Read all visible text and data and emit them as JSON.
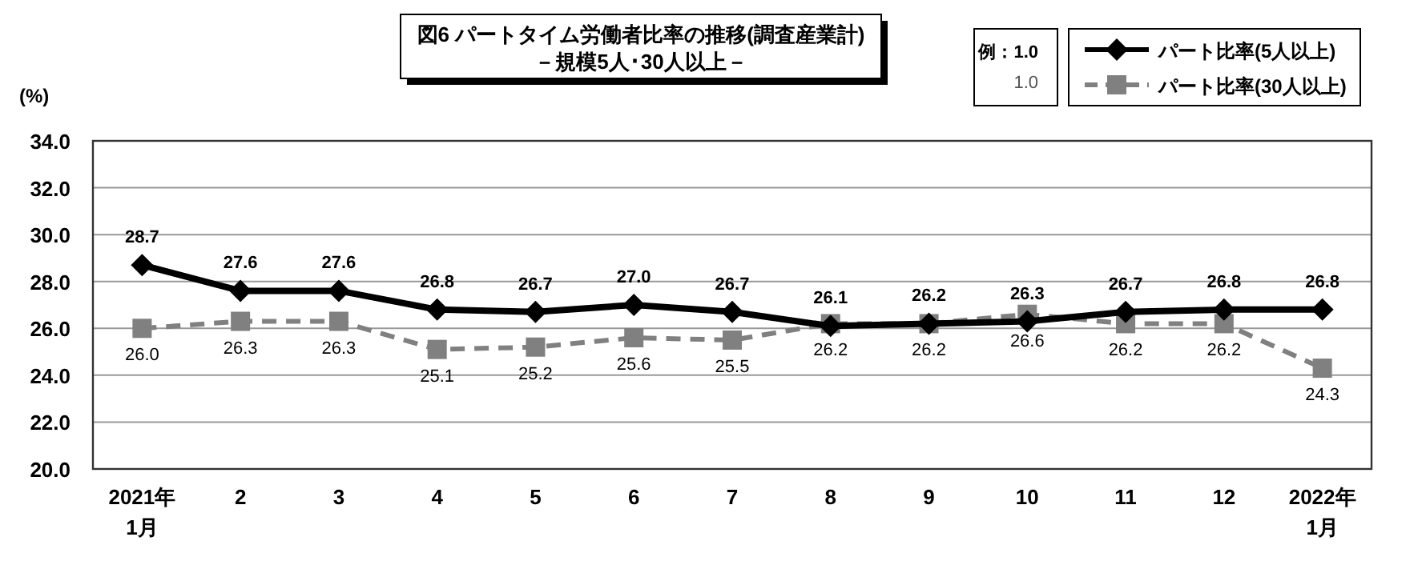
{
  "chart_data": {
    "type": "line",
    "title": "図6 パートタイム労働者比率の推移(調査産業計)",
    "subtitle": "－規模5人･30人以上－",
    "ylabel": "(%)",
    "categories": [
      "2021年\n1月",
      "2",
      "3",
      "4",
      "5",
      "6",
      "7",
      "8",
      "9",
      "10",
      "11",
      "12",
      "2022年\n1月"
    ],
    "series": [
      {
        "name": "パート比率(5人以上)",
        "color": "#000000",
        "marker": "diamond",
        "line_style": "solid",
        "values": [
          28.7,
          27.6,
          27.6,
          26.8,
          26.7,
          27.0,
          26.7,
          26.1,
          26.2,
          26.3,
          26.7,
          26.8,
          26.8
        ],
        "value_labels": [
          "28.7",
          "27.6",
          "27.6",
          "26.8",
          "26.7",
          "27.0",
          "26.7",
          "26.1",
          "26.2",
          "26.3",
          "26.7",
          "26.8",
          "26.8"
        ]
      },
      {
        "name": "パート比率(30人以上)",
        "color": "#808080",
        "marker": "square",
        "line_style": "dashed",
        "values": [
          26.0,
          26.3,
          26.3,
          25.1,
          25.2,
          25.6,
          25.5,
          26.2,
          26.2,
          26.6,
          26.2,
          26.2,
          24.3
        ],
        "value_labels": [
          "26.0",
          "26.3",
          "26.3",
          "25.1",
          "25.2",
          "25.6",
          "25.5",
          "26.2",
          "26.2",
          "26.6",
          "26.2",
          "26.2",
          "24.3"
        ]
      }
    ],
    "ylim": [
      20,
      34
    ],
    "yticks": [
      {
        "value": 20,
        "label": "20.0"
      },
      {
        "value": 22,
        "label": "22.0"
      },
      {
        "value": 24,
        "label": "24.0"
      },
      {
        "value": 26,
        "label": "26.0"
      },
      {
        "value": 28,
        "label": "28.0"
      },
      {
        "value": 30,
        "label": "30.0"
      },
      {
        "value": 32,
        "label": "32.0"
      },
      {
        "value": 34,
        "label": "34.0"
      }
    ],
    "grid": "y",
    "legend": "top right",
    "annotations": [
      "例：1.0",
      "1.0"
    ]
  }
}
